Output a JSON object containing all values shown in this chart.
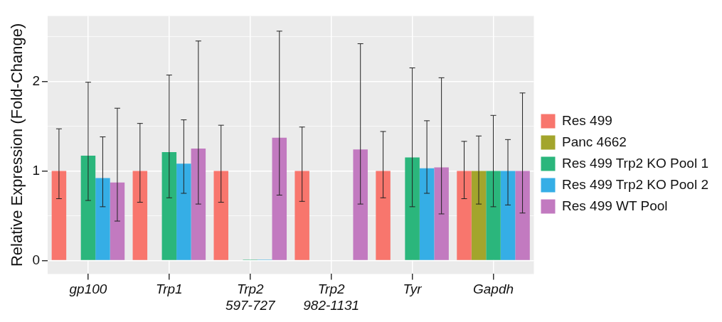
{
  "chart_data": {
    "type": "bar",
    "ylabel": "Relative Expression (Fold-Change)",
    "categories": [
      "gp100",
      "Trp1",
      "Trp2 597-727",
      "Trp2 982-1131",
      "Tyr",
      "Gapdh"
    ],
    "series": [
      {
        "name": "Res 499",
        "color": "#f8766d",
        "values": [
          1,
          1,
          1,
          1,
          1,
          1
        ],
        "errors": [
          [
            0.69,
            1.47
          ],
          [
            0.65,
            1.53
          ],
          [
            0.65,
            1.51
          ],
          [
            0.66,
            1.49
          ],
          [
            0.7,
            1.44
          ],
          [
            0.69,
            1.33
          ]
        ]
      },
      {
        "name": "Panc 4662",
        "color": "#a3a52c",
        "values": [
          0,
          0,
          0,
          0,
          0,
          1
        ],
        "errors": [
          null,
          null,
          null,
          null,
          null,
          [
            0.63,
            1.39
          ]
        ]
      },
      {
        "name": "Res 499 Trp2 KO Pool 1",
        "color": "#2bb67c",
        "values": [
          1.17,
          1.21,
          0.01,
          0,
          1.15,
          1
        ],
        "errors": [
          [
            0.67,
            1.99
          ],
          [
            0.7,
            2.07
          ],
          null,
          null,
          [
            0.6,
            2.15
          ],
          [
            0.6,
            1.62
          ]
        ]
      },
      {
        "name": "Res 499 Trp2 KO Pool 2",
        "color": "#35aee6",
        "values": [
          0.92,
          1.08,
          0.01,
          0,
          1.03,
          1
        ],
        "errors": [
          [
            0.6,
            1.38
          ],
          [
            0.75,
            1.57
          ],
          null,
          null,
          [
            0.75,
            1.56
          ],
          [
            0.62,
            1.35
          ]
        ]
      },
      {
        "name": "Res 499 WT Pool",
        "color": "#c27ac0",
        "values": [
          0.87,
          1.25,
          1.37,
          1.24,
          1.04,
          1
        ],
        "errors": [
          [
            0.44,
            1.7
          ],
          [
            0.63,
            2.45
          ],
          [
            0.73,
            2.56
          ],
          [
            0.63,
            2.42
          ],
          [
            0.52,
            2.04
          ],
          [
            0.53,
            1.87
          ]
        ]
      }
    ],
    "ylim": [
      -0.15,
      2.73
    ],
    "yticks": [
      0,
      {
        "value": 0.5,
        "label": null
      },
      1,
      {
        "value": 1.5,
        "label": null
      },
      2,
      {
        "value": 2.5,
        "label": null
      }
    ],
    "grid": true,
    "legend": "right"
  }
}
